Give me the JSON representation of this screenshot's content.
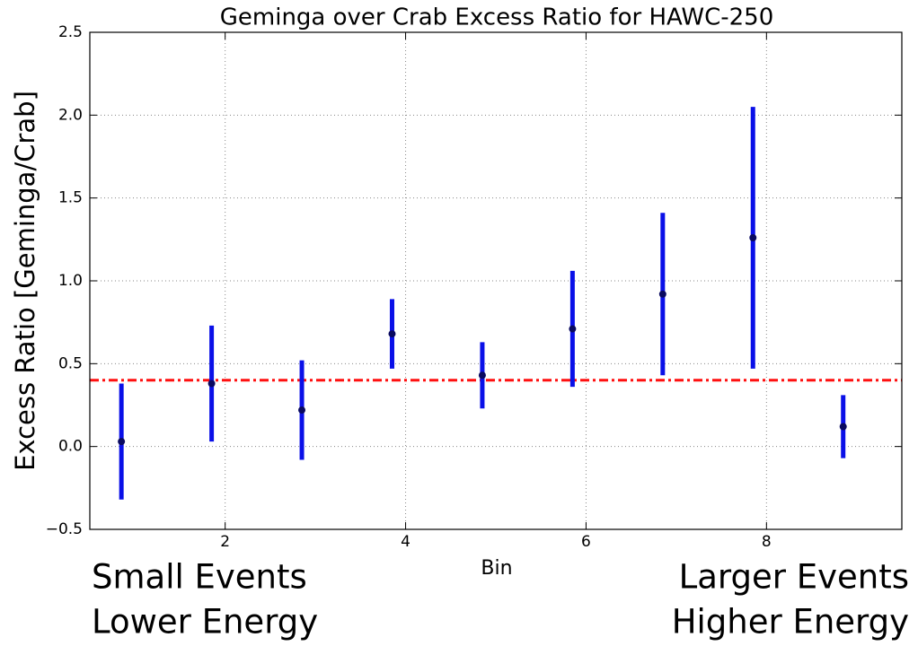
{
  "chart_data": {
    "type": "errorbar",
    "title": "Geminga over Crab Excess Ratio for HAWC-250",
    "x_label": "Bin",
    "y_label": "Excess Ratio [Geminga/Crab]",
    "annotations": {
      "left": [
        "Small Events",
        "Lower Energy"
      ],
      "right": [
        "Larger Events",
        "Higher Energy"
      ]
    },
    "x": [
      0.85,
      1.85,
      2.85,
      3.85,
      4.85,
      5.85,
      6.85,
      7.85,
      8.85
    ],
    "values": [
      0.03,
      0.38,
      0.22,
      0.68,
      0.43,
      0.71,
      0.92,
      1.26,
      0.12
    ],
    "errors": [
      0.35,
      0.35,
      0.3,
      0.21,
      0.2,
      0.35,
      0.49,
      0.79,
      0.19
    ],
    "color": "#0a10e8",
    "hline": {
      "value": 0.4,
      "color": "#ff1010"
    },
    "xlim": [
      0.5,
      9.5
    ],
    "xticks": [
      2,
      4,
      6,
      8
    ],
    "ylim": [
      -0.5,
      2.5
    ],
    "yticks": [
      {
        "value": -0.5,
        "label": "−0.5"
      },
      {
        "value": 0,
        "label": "0.0"
      },
      0.5,
      {
        "value": 1,
        "label": "1.0"
      },
      1.5,
      {
        "value": 2,
        "label": "2.0"
      },
      2.5
    ],
    "grid": true
  }
}
